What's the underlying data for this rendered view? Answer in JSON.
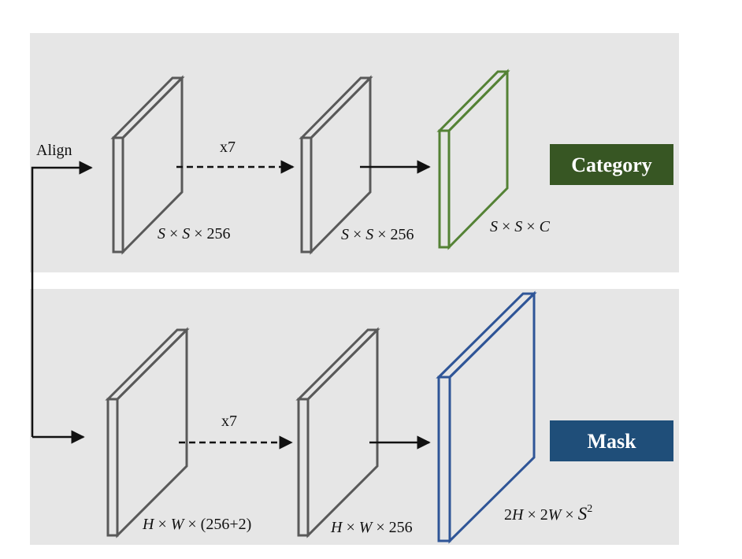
{
  "align_label": "Align",
  "colors": {
    "panel": "#e6e6e6",
    "category": "#375623",
    "mask": "#1f4e79",
    "category_stroke": "#548235",
    "mask_stroke": "#2f5597",
    "gray_stroke": "#595959"
  },
  "top": {
    "repeat_label": "x7",
    "layer1_dims": [
      "S",
      " × ",
      "S",
      " × 256"
    ],
    "layer2_dims": [
      "S",
      " × ",
      "S",
      " × 256"
    ],
    "output_dims": [
      "S",
      " × ",
      "S",
      " × ",
      "C"
    ],
    "badge": "Category"
  },
  "bottom": {
    "repeat_label": "x7",
    "layer1_dims": [
      "H",
      " × ",
      "W",
      " × (256+2)"
    ],
    "layer2_dims": [
      "H",
      " × ",
      "W",
      " × 256"
    ],
    "output_dims": [
      "2",
      "H",
      " × 2",
      "W",
      " × ",
      "S",
      "2"
    ],
    "badge": "Mask"
  }
}
